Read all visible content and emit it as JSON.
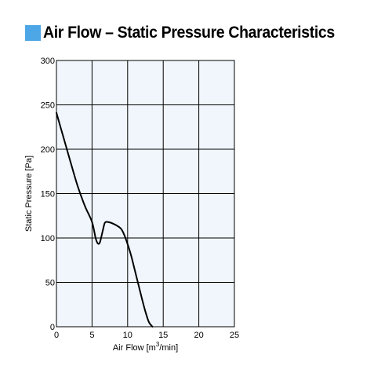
{
  "header": {
    "title": "Air Flow – Static Pressure Characteristics"
  },
  "colors": {
    "title_square": "#4da6e6",
    "plot_background": "#f0f6fc",
    "grid": "#000000",
    "curve": "#000000"
  },
  "chart_data": {
    "type": "line",
    "title": "Air Flow – Static Pressure Characteristics",
    "xlabel": "Air Flow [m3/min]",
    "xlabel_base": "Air Flow [m",
    "xlabel_sup": "3",
    "xlabel_tail": "/min]",
    "ylabel": "Static Pressure [Pa]",
    "xlim": [
      0,
      25
    ],
    "ylim": [
      0,
      300
    ],
    "xticks": [
      0,
      5,
      10,
      15,
      20,
      25
    ],
    "yticks": [
      0,
      50,
      100,
      150,
      200,
      250,
      300
    ],
    "grid": true,
    "series": [
      {
        "x": [
          0,
          1,
          2,
          3,
          4,
          5,
          5.5,
          5.8,
          6.1,
          6.5,
          6.8,
          7.2,
          8,
          9,
          9.5,
          10,
          10.5,
          11,
          11.5,
          12,
          12.5,
          13,
          13.5
        ],
        "y": [
          241,
          213,
          185,
          158,
          136,
          118,
          100,
          94,
          95,
          108,
          117,
          118,
          116,
          111,
          104,
          93,
          80,
          64,
          48,
          32,
          17,
          5,
          0
        ]
      }
    ]
  }
}
